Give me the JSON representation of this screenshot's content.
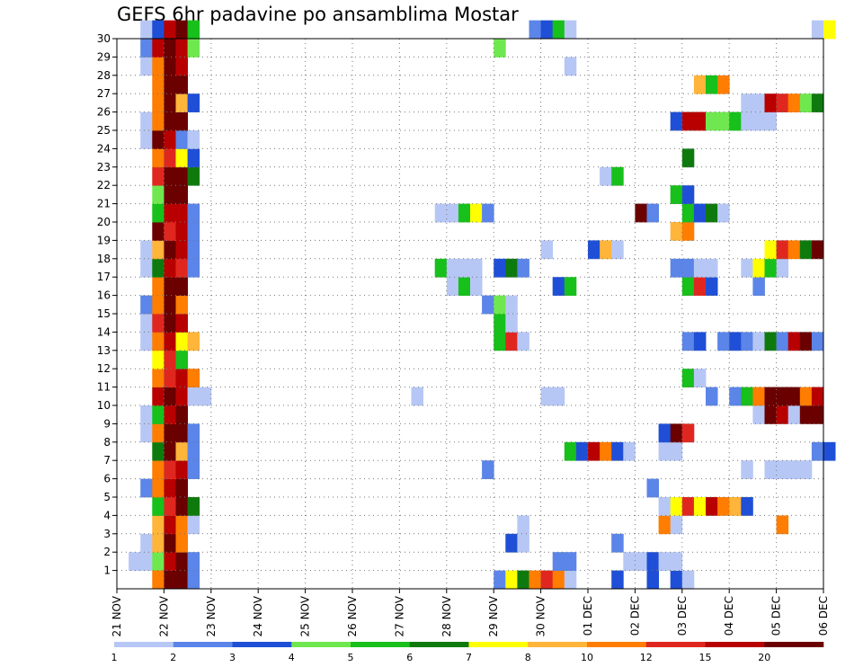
{
  "chart_data": {
    "type": "heatmap",
    "title": "GEFS 6hr padavine po ansamblima Mostar",
    "xlabel": "",
    "ylabel": "",
    "x_tick_labels": [
      "21 NOV",
      "22 NOV",
      "23 NOV",
      "24 NOV",
      "25 NOV",
      "26 NOV",
      "27 NOV",
      "28 NOV",
      "29 NOV",
      "30 NOV",
      "01 DEC",
      "02 DEC",
      "03 DEC",
      "04 DEC",
      "05 DEC",
      "06 DEC"
    ],
    "y_tick_labels": [
      "1",
      "2",
      "3",
      "4",
      "5",
      "6",
      "7",
      "8",
      "9",
      "10",
      "11",
      "12",
      "13",
      "14",
      "15",
      "16",
      "17",
      "18",
      "19",
      "20",
      "21",
      "22",
      "23",
      "24",
      "25",
      "26",
      "27",
      "28",
      "29",
      "30"
    ],
    "y_range": [
      0,
      30
    ],
    "steps_per_day": 4,
    "grid": true,
    "legend": {
      "placement": "bottom",
      "boundaries": [
        "1",
        "2",
        "3",
        "4",
        "5",
        "6",
        "7",
        "8",
        "10",
        "12",
        "15",
        "20"
      ],
      "colors": [
        "#b7c7f5",
        "#5b85e8",
        "#1f4fd6",
        "#6fe84f",
        "#17c01a",
        "#0e7a0e",
        "#ffff00",
        "#ffb43a",
        "#ff7d00",
        "#e0271f",
        "#b80000",
        "#6a0000"
      ]
    },
    "cells": [
      [
        1,
        1,
        1
      ],
      [
        1,
        2,
        1
      ],
      [
        1,
        3,
        4
      ],
      [
        1,
        4,
        11
      ],
      [
        1,
        5,
        12
      ],
      [
        1,
        6,
        2
      ],
      [
        2,
        2,
        1
      ],
      [
        2,
        3,
        8
      ],
      [
        2,
        4,
        12
      ],
      [
        2,
        5,
        9
      ],
      [
        3,
        3,
        8
      ],
      [
        3,
        4,
        11
      ],
      [
        3,
        5,
        9
      ],
      [
        3,
        6,
        1
      ],
      [
        4,
        3,
        5
      ],
      [
        4,
        4,
        10
      ],
      [
        4,
        5,
        12
      ],
      [
        4,
        6,
        6
      ],
      [
        5,
        2,
        2
      ],
      [
        5,
        3,
        9
      ],
      [
        5,
        4,
        11
      ],
      [
        5,
        5,
        12
      ],
      [
        6,
        3,
        9
      ],
      [
        6,
        4,
        10
      ],
      [
        6,
        5,
        11
      ],
      [
        6,
        6,
        2
      ],
      [
        7,
        3,
        6
      ],
      [
        7,
        4,
        12
      ],
      [
        7,
        5,
        8
      ],
      [
        7,
        6,
        2
      ],
      [
        8,
        2,
        1
      ],
      [
        8,
        3,
        9
      ],
      [
        8,
        4,
        12
      ],
      [
        8,
        5,
        12
      ],
      [
        8,
        6,
        2
      ],
      [
        9,
        2,
        1
      ],
      [
        9,
        3,
        5
      ],
      [
        9,
        4,
        11
      ],
      [
        9,
        5,
        12
      ],
      [
        10,
        3,
        11
      ],
      [
        10,
        4,
        12
      ],
      [
        10,
        5,
        11
      ],
      [
        10,
        6,
        1
      ],
      [
        10,
        7,
        1
      ],
      [
        11,
        3,
        9
      ],
      [
        11,
        4,
        10
      ],
      [
        11,
        5,
        11
      ],
      [
        11,
        6,
        9
      ],
      [
        12,
        3,
        7
      ],
      [
        12,
        4,
        10
      ],
      [
        12,
        5,
        5
      ],
      [
        13,
        2,
        1
      ],
      [
        13,
        3,
        9
      ],
      [
        13,
        4,
        11
      ],
      [
        13,
        5,
        7
      ],
      [
        13,
        6,
        8
      ],
      [
        14,
        2,
        1
      ],
      [
        14,
        3,
        10
      ],
      [
        14,
        4,
        12
      ],
      [
        14,
        5,
        11
      ],
      [
        15,
        2,
        2
      ],
      [
        15,
        3,
        9
      ],
      [
        15,
        4,
        12
      ],
      [
        15,
        5,
        9
      ],
      [
        16,
        3,
        9
      ],
      [
        16,
        4,
        12
      ],
      [
        16,
        5,
        12
      ],
      [
        17,
        2,
        1
      ],
      [
        17,
        3,
        6
      ],
      [
        17,
        4,
        11
      ],
      [
        17,
        5,
        10
      ],
      [
        17,
        6,
        2
      ],
      [
        18,
        2,
        1
      ],
      [
        18,
        3,
        8
      ],
      [
        18,
        4,
        12
      ],
      [
        18,
        5,
        11
      ],
      [
        18,
        6,
        2
      ],
      [
        19,
        3,
        12
      ],
      [
        19,
        4,
        10
      ],
      [
        19,
        5,
        11
      ],
      [
        19,
        6,
        2
      ],
      [
        20,
        3,
        5
      ],
      [
        20,
        4,
        11
      ],
      [
        20,
        5,
        11
      ],
      [
        20,
        6,
        2
      ],
      [
        21,
        3,
        4
      ],
      [
        21,
        4,
        12
      ],
      [
        21,
        5,
        12
      ],
      [
        22,
        3,
        10
      ],
      [
        22,
        4,
        12
      ],
      [
        22,
        5,
        12
      ],
      [
        22,
        6,
        6
      ],
      [
        23,
        3,
        9
      ],
      [
        23,
        4,
        10
      ],
      [
        23,
        5,
        7
      ],
      [
        23,
        6,
        3
      ],
      [
        24,
        2,
        1
      ],
      [
        24,
        3,
        12
      ],
      [
        24,
        4,
        11
      ],
      [
        24,
        5,
        2
      ],
      [
        24,
        6,
        1
      ],
      [
        25,
        2,
        1
      ],
      [
        25,
        3,
        9
      ],
      [
        25,
        4,
        12
      ],
      [
        25,
        5,
        12
      ],
      [
        26,
        3,
        9
      ],
      [
        26,
        4,
        12
      ],
      [
        26,
        5,
        8
      ],
      [
        26,
        6,
        3
      ],
      [
        27,
        3,
        9
      ],
      [
        27,
        4,
        12
      ],
      [
        27,
        5,
        12
      ],
      [
        28,
        2,
        1
      ],
      [
        28,
        3,
        9
      ],
      [
        28,
        4,
        12
      ],
      [
        28,
        5,
        11
      ],
      [
        29,
        2,
        2
      ],
      [
        29,
        3,
        11
      ],
      [
        29,
        4,
        12
      ],
      [
        29,
        5,
        11
      ],
      [
        29,
        6,
        4
      ],
      [
        30,
        2,
        1
      ],
      [
        30,
        3,
        3
      ],
      [
        30,
        4,
        11
      ],
      [
        30,
        5,
        12
      ],
      [
        30,
        6,
        5
      ],
      [
        0,
        3,
        9
      ],
      [
        0,
        4,
        12
      ],
      [
        0,
        5,
        12
      ],
      [
        0,
        6,
        2
      ],
      [
        0,
        32,
        2
      ],
      [
        0,
        33,
        7
      ],
      [
        0,
        34,
        6
      ],
      [
        0,
        35,
        9
      ],
      [
        0,
        36,
        10
      ],
      [
        0,
        37,
        9
      ],
      [
        0,
        38,
        1
      ],
      [
        0,
        42,
        3
      ],
      [
        0,
        45,
        3
      ],
      [
        0,
        47,
        3
      ],
      [
        0,
        48,
        1
      ],
      [
        1,
        37,
        2
      ],
      [
        1,
        38,
        2
      ],
      [
        1,
        43,
        1
      ],
      [
        1,
        44,
        1
      ],
      [
        1,
        45,
        3
      ],
      [
        1,
        46,
        1
      ],
      [
        1,
        47,
        1
      ],
      [
        2,
        33,
        3
      ],
      [
        2,
        34,
        1
      ],
      [
        2,
        42,
        2
      ],
      [
        3,
        34,
        1
      ],
      [
        3,
        46,
        9
      ],
      [
        3,
        47,
        1
      ],
      [
        3,
        56,
        9
      ],
      [
        4,
        46,
        1
      ],
      [
        4,
        47,
        7
      ],
      [
        4,
        48,
        10
      ],
      [
        4,
        49,
        7
      ],
      [
        4,
        50,
        11
      ],
      [
        4,
        51,
        9
      ],
      [
        4,
        52,
        8
      ],
      [
        4,
        53,
        3
      ],
      [
        5,
        45,
        2
      ],
      [
        6,
        31,
        2
      ],
      [
        6,
        53,
        1
      ],
      [
        6,
        55,
        1
      ],
      [
        6,
        56,
        1
      ],
      [
        6,
        57,
        1
      ],
      [
        6,
        58,
        1
      ],
      [
        7,
        38,
        5
      ],
      [
        7,
        39,
        3
      ],
      [
        7,
        40,
        11
      ],
      [
        7,
        41,
        9
      ],
      [
        7,
        42,
        3
      ],
      [
        7,
        43,
        1
      ],
      [
        7,
        46,
        1
      ],
      [
        7,
        47,
        1
      ],
      [
        7,
        59,
        2
      ],
      [
        7,
        60,
        3
      ],
      [
        8,
        46,
        3
      ],
      [
        8,
        47,
        12
      ],
      [
        8,
        48,
        10
      ],
      [
        9,
        54,
        1
      ],
      [
        9,
        55,
        12
      ],
      [
        9,
        56,
        11
      ],
      [
        9,
        57,
        1
      ],
      [
        9,
        58,
        12
      ],
      [
        9,
        59,
        12
      ],
      [
        10,
        25,
        1
      ],
      [
        10,
        36,
        1
      ],
      [
        10,
        37,
        1
      ],
      [
        10,
        50,
        2
      ],
      [
        10,
        52,
        2
      ],
      [
        10,
        53,
        5
      ],
      [
        10,
        54,
        9
      ],
      [
        10,
        55,
        12
      ],
      [
        10,
        56,
        12
      ],
      [
        10,
        57,
        12
      ],
      [
        10,
        58,
        9
      ],
      [
        10,
        59,
        11
      ],
      [
        11,
        48,
        5
      ],
      [
        11,
        49,
        1
      ],
      [
        13,
        32,
        5
      ],
      [
        13,
        33,
        10
      ],
      [
        13,
        34,
        1
      ],
      [
        13,
        48,
        2
      ],
      [
        13,
        49,
        3
      ],
      [
        13,
        51,
        2
      ],
      [
        13,
        52,
        3
      ],
      [
        13,
        53,
        2
      ],
      [
        13,
        54,
        1
      ],
      [
        13,
        55,
        6
      ],
      [
        13,
        56,
        2
      ],
      [
        13,
        57,
        11
      ],
      [
        13,
        58,
        12
      ],
      [
        13,
        59,
        2
      ],
      [
        14,
        32,
        5
      ],
      [
        14,
        33,
        1
      ],
      [
        15,
        31,
        2
      ],
      [
        15,
        32,
        4
      ],
      [
        15,
        33,
        1
      ],
      [
        16,
        28,
        1
      ],
      [
        16,
        29,
        5
      ],
      [
        16,
        30,
        1
      ],
      [
        16,
        37,
        3
      ],
      [
        16,
        38,
        5
      ],
      [
        16,
        48,
        5
      ],
      [
        16,
        49,
        10
      ],
      [
        16,
        50,
        3
      ],
      [
        16,
        54,
        2
      ],
      [
        17,
        27,
        5
      ],
      [
        17,
        28,
        1
      ],
      [
        17,
        29,
        1
      ],
      [
        17,
        30,
        1
      ],
      [
        17,
        32,
        3
      ],
      [
        17,
        33,
        6
      ],
      [
        17,
        34,
        2
      ],
      [
        17,
        47,
        2
      ],
      [
        17,
        48,
        2
      ],
      [
        17,
        49,
        1
      ],
      [
        17,
        50,
        1
      ],
      [
        17,
        53,
        1
      ],
      [
        17,
        54,
        7
      ],
      [
        17,
        55,
        5
      ],
      [
        17,
        56,
        1
      ],
      [
        18,
        36,
        1
      ],
      [
        18,
        40,
        3
      ],
      [
        18,
        41,
        8
      ],
      [
        18,
        42,
        1
      ],
      [
        18,
        55,
        7
      ],
      [
        18,
        56,
        10
      ],
      [
        18,
        57,
        9
      ],
      [
        18,
        58,
        6
      ],
      [
        18,
        59,
        12
      ],
      [
        19,
        47,
        8
      ],
      [
        19,
        48,
        9
      ],
      [
        20,
        27,
        1
      ],
      [
        20,
        28,
        1
      ],
      [
        20,
        29,
        5
      ],
      [
        20,
        30,
        7
      ],
      [
        20,
        31,
        2
      ],
      [
        20,
        44,
        12
      ],
      [
        20,
        45,
        2
      ],
      [
        20,
        48,
        5
      ],
      [
        20,
        49,
        3
      ],
      [
        20,
        50,
        6
      ],
      [
        20,
        51,
        1
      ],
      [
        21,
        47,
        5
      ],
      [
        21,
        48,
        3
      ],
      [
        22,
        41,
        1
      ],
      [
        22,
        42,
        5
      ],
      [
        23,
        48,
        6
      ],
      [
        25,
        47,
        3
      ],
      [
        25,
        48,
        11
      ],
      [
        25,
        49,
        11
      ],
      [
        25,
        50,
        4
      ],
      [
        25,
        51,
        4
      ],
      [
        25,
        52,
        5
      ],
      [
        25,
        53,
        1
      ],
      [
        25,
        54,
        1
      ],
      [
        25,
        55,
        1
      ],
      [
        26,
        53,
        1
      ],
      [
        26,
        54,
        1
      ],
      [
        26,
        55,
        11
      ],
      [
        26,
        56,
        10
      ],
      [
        26,
        57,
        9
      ],
      [
        26,
        58,
        4
      ],
      [
        26,
        59,
        6
      ],
      [
        27,
        49,
        8
      ],
      [
        27,
        50,
        5
      ],
      [
        27,
        51,
        9
      ],
      [
        28,
        38,
        1
      ],
      [
        29,
        32,
        4
      ],
      [
        30,
        35,
        2
      ],
      [
        30,
        36,
        3
      ],
      [
        30,
        37,
        5
      ],
      [
        30,
        38,
        1
      ],
      [
        30,
        59,
        1
      ],
      [
        30,
        60,
        7
      ]
    ]
  }
}
